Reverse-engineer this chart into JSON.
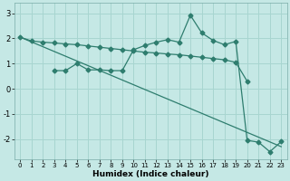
{
  "xlabel": "Humidex (Indice chaleur)",
  "bg_color": "#c5e8e5",
  "grid_color": "#a8d5d0",
  "line_color": "#2e7d6e",
  "xlim": [
    -0.5,
    23.5
  ],
  "ylim": [
    -2.8,
    3.4
  ],
  "yticks": [
    -2,
    -1,
    0,
    1,
    2,
    3
  ],
  "xticks": [
    0,
    1,
    2,
    3,
    4,
    5,
    6,
    7,
    8,
    9,
    10,
    11,
    12,
    13,
    14,
    15,
    16,
    17,
    18,
    19,
    20,
    21,
    22,
    23
  ],
  "line1_x": [
    0,
    1,
    2,
    3,
    4,
    5,
    6,
    7,
    8,
    9,
    10,
    11,
    12,
    13,
    14,
    15,
    16,
    17,
    18,
    19,
    20
  ],
  "line1_y": [
    2.05,
    1.9,
    1.85,
    1.82,
    1.78,
    1.75,
    1.7,
    1.65,
    1.6,
    1.55,
    1.5,
    1.45,
    1.42,
    1.38,
    1.35,
    1.3,
    1.25,
    1.2,
    1.15,
    1.05,
    0.3
  ],
  "line2_x": [
    3,
    4,
    5,
    6,
    7,
    8,
    9,
    10,
    11,
    12,
    13,
    14,
    15,
    16,
    17,
    18,
    19,
    20,
    21,
    22,
    23
  ],
  "line2_y": [
    0.72,
    0.72,
    1.0,
    0.75,
    0.75,
    0.72,
    0.72,
    1.55,
    1.72,
    1.85,
    1.95,
    1.85,
    2.92,
    2.22,
    1.92,
    1.75,
    1.88,
    -2.05,
    -2.12,
    -2.5,
    -2.1
  ],
  "line3_x": [
    0,
    23
  ],
  "line3_y": [
    2.05,
    -2.3
  ],
  "marker": "D",
  "markersize": 2.5,
  "linewidth": 0.9
}
